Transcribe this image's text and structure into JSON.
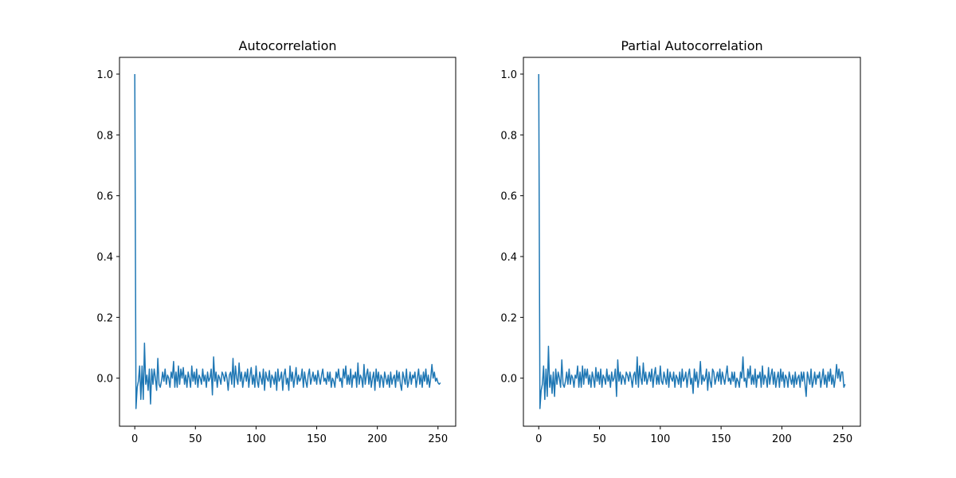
{
  "chart_data": [
    {
      "type": "line",
      "title": "Autocorrelation",
      "color": "#1f77b4",
      "xlim": [
        -12.6,
        264.6
      ],
      "ylim": [
        -0.158,
        1.055
      ],
      "xticks": [
        0,
        50,
        100,
        150,
        200,
        250
      ],
      "yticks": [
        {
          "value": 0,
          "label": "0.0"
        },
        0.2,
        0.4,
        0.6,
        0.8,
        {
          "value": 1,
          "label": "1.0"
        }
      ],
      "x": [
        0,
        1,
        2,
        3,
        4,
        5,
        6,
        7,
        8,
        9,
        10,
        11,
        12,
        13,
        14,
        15,
        16,
        17,
        18,
        19,
        20,
        21,
        22,
        23,
        24,
        25,
        26,
        27,
        28,
        29,
        30,
        31,
        32,
        33,
        34,
        35,
        36,
        37,
        38,
        39,
        40,
        41,
        42,
        43,
        44,
        45,
        46,
        47,
        48,
        49,
        50,
        51,
        52,
        53,
        54,
        55,
        56,
        57,
        58,
        59,
        60,
        61,
        62,
        63,
        64,
        65,
        66,
        67,
        68,
        69,
        70,
        71,
        72,
        73,
        74,
        75,
        76,
        77,
        78,
        79,
        80,
        81,
        82,
        83,
        84,
        85,
        86,
        87,
        88,
        89,
        90,
        91,
        92,
        93,
        94,
        95,
        96,
        97,
        98,
        99,
        100,
        101,
        102,
        103,
        104,
        105,
        106,
        107,
        108,
        109,
        110,
        111,
        112,
        113,
        114,
        115,
        116,
        117,
        118,
        119,
        120,
        121,
        122,
        123,
        124,
        125,
        126,
        127,
        128,
        129,
        130,
        131,
        132,
        133,
        134,
        135,
        136,
        137,
        138,
        139,
        140,
        141,
        142,
        143,
        144,
        145,
        146,
        147,
        148,
        149,
        150,
        151,
        152,
        153,
        154,
        155,
        156,
        157,
        158,
        159,
        160,
        161,
        162,
        163,
        164,
        165,
        166,
        167,
        168,
        169,
        170,
        171,
        172,
        173,
        174,
        175,
        176,
        177,
        178,
        179,
        180,
        181,
        182,
        183,
        184,
        185,
        186,
        187,
        188,
        189,
        190,
        191,
        192,
        193,
        194,
        195,
        196,
        197,
        198,
        199,
        200,
        201,
        202,
        203,
        204,
        205,
        206,
        207,
        208,
        209,
        210,
        211,
        212,
        213,
        214,
        215,
        216,
        217,
        218,
        219,
        220,
        221,
        222,
        223,
        224,
        225,
        226,
        227,
        228,
        229,
        230,
        231,
        232,
        233,
        234,
        235,
        236,
        237,
        238,
        239,
        240,
        241,
        242,
        243,
        244,
        245,
        246,
        247,
        248,
        249,
        250,
        251,
        252
      ],
      "values": [
        1.0,
        -0.1,
        -0.03,
        -0.01,
        0.04,
        -0.07,
        0.04,
        -0.07,
        0.115,
        -0.02,
        0.01,
        -0.04,
        0.03,
        -0.085,
        0.03,
        -0.02,
        0.03,
        0.0,
        -0.04,
        0.065,
        -0.02,
        -0.03,
        -0.01,
        0.02,
        -0.01,
        0.03,
        -0.02,
        0.01,
        0.0,
        -0.03,
        0.02,
        0.0,
        0.055,
        -0.03,
        0.02,
        -0.03,
        0.04,
        -0.02,
        0.03,
        0.0,
        0.035,
        -0.02,
        0.01,
        -0.03,
        0.02,
        0.0,
        -0.03,
        0.04,
        -0.01,
        0.02,
        -0.02,
        0.03,
        -0.03,
        0.01,
        0.0,
        -0.02,
        0.03,
        -0.01,
        0.01,
        -0.03,
        0.02,
        -0.01,
        0.0,
        0.03,
        -0.055,
        0.07,
        -0.01,
        0.02,
        -0.03,
        0.01,
        0.0,
        -0.02,
        0.02,
        0.01,
        -0.01,
        0.02,
        0.0,
        -0.04,
        0.01,
        0.02,
        -0.02,
        0.065,
        -0.03,
        0.04,
        0.0,
        -0.02,
        0.05,
        -0.01,
        0.02,
        -0.03,
        0.0,
        0.02,
        -0.01,
        0.03,
        -0.03,
        0.01,
        0.035,
        -0.02,
        0.01,
        -0.03,
        0.04,
        -0.01,
        -0.03,
        0.02,
        0.0,
        -0.02,
        0.03,
        -0.04,
        0.02,
        0.0,
        -0.01,
        0.025,
        -0.03,
        0.01,
        0.0,
        -0.02,
        0.02,
        -0.04,
        0.03,
        -0.01,
        0.0,
        0.02,
        -0.04,
        0.01,
        0.03,
        -0.02,
        0.0,
        -0.04,
        0.04,
        -0.01,
        0.02,
        -0.03,
        0.0,
        0.035,
        -0.02,
        0.01,
        -0.01,
        0.0,
        0.03,
        -0.03,
        0.02,
        -0.01,
        -0.03,
        0.01,
        0.03,
        -0.02,
        0.0,
        0.02,
        -0.01,
        0.01,
        -0.02,
        0.025,
        0.0,
        -0.02,
        0.01,
        0.03,
        -0.01,
        0.0,
        -0.02,
        0.02,
        -0.01,
        0.02,
        -0.03,
        0.0,
        -0.01,
        -0.03,
        0.02,
        0.0,
        0.03,
        -0.01,
        0.0,
        -0.03,
        0.03,
        0.0,
        0.04,
        -0.02,
        0.01,
        -0.02,
        0.03,
        -0.03,
        0.01,
        0.0,
        0.02,
        -0.03,
        0.05,
        -0.02,
        0.01,
        0.0,
        -0.03,
        0.045,
        -0.02,
        0.01,
        0.03,
        -0.02,
        0.02,
        -0.03,
        0.0,
        0.02,
        -0.04,
        0.03,
        -0.01,
        0.02,
        -0.03,
        0.01,
        0.0,
        -0.03,
        0.02,
        0.0,
        -0.02,
        0.01,
        -0.03,
        0.02,
        -0.02,
        0.0,
        0.01,
        -0.03,
        0.025,
        -0.01,
        0.02,
        -0.02,
        -0.04,
        0.02,
        0.0,
        -0.02,
        0.03,
        -0.03,
        -0.01,
        0.02,
        -0.02,
        0.01,
        0.0,
        0.02,
        -0.03,
        0.0,
        0.03,
        -0.02,
        0.01,
        -0.03,
        0.02,
        -0.01,
        0.03,
        -0.02,
        0.01,
        -0.03,
        0.0,
        0.045,
        0.0,
        0.02,
        -0.01,
        0.0,
        -0.015,
        -0.02,
        -0.015
      ]
    },
    {
      "type": "line",
      "title": "Partial Autocorrelation",
      "color": "#1f77b4",
      "xlim": [
        -12.6,
        264.6
      ],
      "ylim": [
        -0.158,
        1.055
      ],
      "xticks": [
        0,
        50,
        100,
        150,
        200,
        250
      ],
      "yticks": [
        {
          "value": 0,
          "label": "0.0"
        },
        0.2,
        0.4,
        0.6,
        0.8,
        {
          "value": 1,
          "label": "1.0"
        }
      ],
      "x": [
        0,
        1,
        2,
        3,
        4,
        5,
        6,
        7,
        8,
        9,
        10,
        11,
        12,
        13,
        14,
        15,
        16,
        17,
        18,
        19,
        20,
        21,
        22,
        23,
        24,
        25,
        26,
        27,
        28,
        29,
        30,
        31,
        32,
        33,
        34,
        35,
        36,
        37,
        38,
        39,
        40,
        41,
        42,
        43,
        44,
        45,
        46,
        47,
        48,
        49,
        50,
        51,
        52,
        53,
        54,
        55,
        56,
        57,
        58,
        59,
        60,
        61,
        62,
        63,
        64,
        65,
        66,
        67,
        68,
        69,
        70,
        71,
        72,
        73,
        74,
        75,
        76,
        77,
        78,
        79,
        80,
        81,
        82,
        83,
        84,
        85,
        86,
        87,
        88,
        89,
        90,
        91,
        92,
        93,
        94,
        95,
        96,
        97,
        98,
        99,
        100,
        101,
        102,
        103,
        104,
        105,
        106,
        107,
        108,
        109,
        110,
        111,
        112,
        113,
        114,
        115,
        116,
        117,
        118,
        119,
        120,
        121,
        122,
        123,
        124,
        125,
        126,
        127,
        128,
        129,
        130,
        131,
        132,
        133,
        134,
        135,
        136,
        137,
        138,
        139,
        140,
        141,
        142,
        143,
        144,
        145,
        146,
        147,
        148,
        149,
        150,
        151,
        152,
        153,
        154,
        155,
        156,
        157,
        158,
        159,
        160,
        161,
        162,
        163,
        164,
        165,
        166,
        167,
        168,
        169,
        170,
        171,
        172,
        173,
        174,
        175,
        176,
        177,
        178,
        179,
        180,
        181,
        182,
        183,
        184,
        185,
        186,
        187,
        188,
        189,
        190,
        191,
        192,
        193,
        194,
        195,
        196,
        197,
        198,
        199,
        200,
        201,
        202,
        203,
        204,
        205,
        206,
        207,
        208,
        209,
        210,
        211,
        212,
        213,
        214,
        215,
        216,
        217,
        218,
        219,
        220,
        221,
        222,
        223,
        224,
        225,
        226,
        227,
        228,
        229,
        230,
        231,
        232,
        233,
        234,
        235,
        236,
        237,
        238,
        239,
        240,
        241,
        242,
        243,
        244,
        245,
        246,
        247,
        248,
        249,
        250,
        251,
        252
      ],
      "values": [
        1.0,
        -0.1,
        -0.04,
        -0.02,
        0.04,
        -0.07,
        0.03,
        -0.06,
        0.105,
        -0.03,
        0.01,
        -0.05,
        0.02,
        -0.06,
        0.03,
        -0.02,
        0.02,
        0.0,
        -0.03,
        0.06,
        -0.02,
        -0.03,
        -0.01,
        0.02,
        -0.02,
        0.03,
        -0.02,
        0.01,
        0.0,
        -0.03,
        0.01,
        0.0,
        0.04,
        -0.03,
        0.02,
        -0.03,
        0.04,
        -0.02,
        0.03,
        0.0,
        0.03,
        -0.02,
        0.01,
        -0.03,
        0.02,
        0.0,
        -0.03,
        0.035,
        -0.01,
        0.02,
        -0.02,
        0.03,
        -0.03,
        0.01,
        0.0,
        -0.02,
        0.03,
        -0.01,
        0.01,
        -0.03,
        0.02,
        -0.01,
        0.0,
        0.03,
        -0.06,
        0.06,
        -0.01,
        0.02,
        -0.02,
        0.01,
        0.0,
        -0.02,
        0.02,
        0.01,
        -0.01,
        0.02,
        0.0,
        -0.03,
        0.01,
        0.02,
        -0.02,
        0.07,
        -0.03,
        0.04,
        0.0,
        -0.02,
        0.05,
        -0.01,
        0.02,
        -0.02,
        0.0,
        0.02,
        -0.01,
        0.03,
        -0.03,
        0.01,
        0.035,
        -0.02,
        0.01,
        -0.02,
        0.04,
        -0.01,
        -0.02,
        0.02,
        0.0,
        -0.02,
        0.03,
        -0.03,
        0.02,
        0.0,
        -0.01,
        0.02,
        -0.03,
        0.01,
        0.0,
        -0.02,
        0.02,
        -0.03,
        0.03,
        -0.01,
        0.0,
        0.02,
        -0.03,
        0.01,
        0.03,
        -0.02,
        0.0,
        -0.05,
        0.03,
        -0.01,
        0.02,
        -0.03,
        0.0,
        0.055,
        -0.02,
        0.01,
        -0.01,
        0.0,
        0.03,
        -0.04,
        0.02,
        -0.01,
        -0.03,
        0.03,
        0.02,
        -0.02,
        0.0,
        0.02,
        -0.01,
        0.03,
        -0.02,
        0.02,
        0.0,
        -0.02,
        0.01,
        0.04,
        -0.01,
        0.0,
        -0.02,
        0.02,
        -0.01,
        0.02,
        -0.03,
        0.0,
        -0.01,
        -0.03,
        0.02,
        0.0,
        0.07,
        -0.01,
        0.0,
        -0.03,
        0.03,
        0.0,
        0.04,
        -0.02,
        0.01,
        -0.02,
        0.03,
        -0.03,
        0.01,
        0.0,
        0.02,
        -0.03,
        0.04,
        -0.02,
        0.01,
        0.0,
        -0.03,
        0.035,
        -0.02,
        0.01,
        0.03,
        -0.02,
        0.02,
        -0.03,
        0.0,
        0.02,
        -0.03,
        0.03,
        -0.01,
        0.02,
        -0.03,
        0.01,
        0.0,
        -0.03,
        0.02,
        0.0,
        -0.02,
        0.01,
        -0.03,
        0.02,
        -0.02,
        0.0,
        0.01,
        -0.03,
        0.02,
        -0.01,
        0.02,
        -0.02,
        -0.06,
        0.02,
        0.0,
        -0.02,
        0.03,
        -0.03,
        -0.01,
        0.02,
        -0.02,
        0.01,
        0.0,
        0.02,
        -0.03,
        0.0,
        0.03,
        -0.02,
        0.01,
        -0.03,
        0.02,
        -0.01,
        0.03,
        -0.02,
        0.01,
        -0.03,
        0.0,
        0.045,
        0.0,
        0.03,
        -0.01,
        0.02,
        0.02,
        -0.03,
        -0.02
      ]
    }
  ]
}
